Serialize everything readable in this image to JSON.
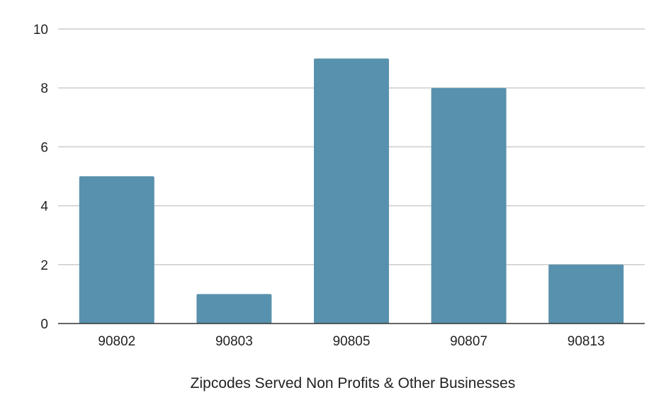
{
  "chart_data": {
    "type": "bar",
    "title": "",
    "xlabel": "Zipcodes Served Non Profits & Other Businesses",
    "ylabel": "",
    "categories": [
      "90802",
      "90803",
      "90805",
      "90807",
      "90813"
    ],
    "values": [
      5,
      1,
      9,
      8,
      2
    ],
    "ylim": [
      0,
      10
    ],
    "yticks": [
      0,
      2,
      4,
      6,
      8,
      10
    ],
    "grid": true,
    "legend": "none",
    "bar_color": "#5891ad"
  }
}
